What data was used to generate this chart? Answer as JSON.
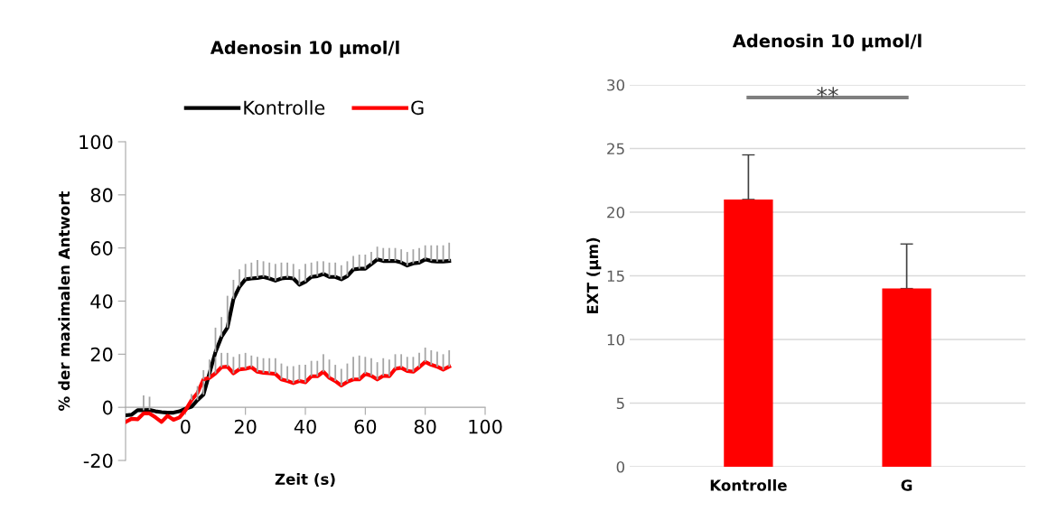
{
  "chart_data": [
    {
      "type": "line",
      "title": "Adenosin 10 µmol/l",
      "xlabel": "Zeit (s)",
      "ylabel": "% der maximalen Antwort",
      "xlim": [
        -20,
        100
      ],
      "xticks": [
        0,
        20,
        40,
        60,
        80,
        100
      ],
      "ylim": [
        -20,
        100
      ],
      "yticks": [
        -20,
        0,
        20,
        40,
        60,
        80,
        100
      ],
      "grid": false,
      "legend": "top",
      "marker": "none",
      "line_style": "solid",
      "x": [
        -20,
        -18,
        -16,
        -14,
        -12,
        -10,
        -8,
        -6,
        -4,
        -2,
        0,
        2,
        4,
        6,
        8,
        10,
        12,
        14,
        16,
        18,
        20,
        22,
        24,
        26,
        28,
        30,
        32,
        34,
        36,
        38,
        40,
        42,
        44,
        46,
        48,
        50,
        52,
        54,
        56,
        58,
        60,
        62,
        64,
        66,
        68,
        70,
        72,
        74,
        76,
        78,
        80,
        82,
        84,
        86,
        88
      ],
      "series": [
        {
          "name": "Kontrolle",
          "color": "#000000",
          "values": [
            -3.0,
            -2.8,
            -1.1,
            -1.1,
            -1.0,
            -1.5,
            -1.8,
            -2.0,
            -2.0,
            -1.5,
            -0.5,
            0.2,
            2.7,
            4.8,
            12.8,
            20.8,
            26.5,
            30.0,
            40.8,
            45.4,
            48.2,
            48.5,
            48.7,
            49.1,
            48.5,
            47.7,
            48.5,
            48.8,
            48.5,
            46.2,
            47.3,
            49.1,
            49.4,
            50.2,
            49.1,
            49.1,
            48.2,
            49.4,
            51.9,
            52.2,
            52.2,
            53.9,
            55.7,
            55.1,
            55.1,
            55.1,
            54.5,
            53.4,
            54.2,
            54.5,
            55.7,
            55.1,
            54.9,
            54.9,
            55.1
          ],
          "errors": [
            null,
            null,
            null,
            [
              -1.1,
              4.5
            ],
            [
              -1.0,
              4
            ],
            null,
            null,
            null,
            null,
            null,
            null,
            null,
            [
              2.7,
              6
            ],
            [
              4.8,
              10
            ],
            [
              12.8,
              18
            ],
            [
              20.8,
              30
            ],
            [
              26.5,
              34
            ],
            [
              30.0,
              42
            ],
            [
              40.8,
              48
            ],
            [
              45.4,
              52
            ],
            [
              48.2,
              54
            ],
            [
              48.5,
              54.5
            ],
            [
              48.7,
              55.5
            ],
            [
              49.1,
              55
            ],
            [
              48.5,
              54.5
            ],
            [
              47.7,
              54
            ],
            [
              48.5,
              54.5
            ],
            [
              48.8,
              54.5
            ],
            [
              48.5,
              54
            ],
            [
              46.2,
              52
            ],
            [
              47.3,
              54
            ],
            [
              49.1,
              54.5
            ],
            [
              49.4,
              55
            ],
            [
              50.2,
              55
            ],
            [
              49.1,
              54.5
            ],
            [
              49.1,
              54.5
            ],
            [
              48.2,
              53.5
            ],
            [
              49.4,
              55
            ],
            [
              51.9,
              57
            ],
            [
              52.2,
              57.5
            ],
            [
              52.2,
              57.5
            ],
            [
              53.9,
              58.5
            ],
            [
              55.7,
              60.5
            ],
            [
              55.1,
              60
            ],
            [
              55.1,
              60
            ],
            [
              55.1,
              60
            ],
            [
              54.5,
              59.5
            ],
            [
              53.4,
              58.5
            ],
            [
              54.2,
              59.5
            ],
            [
              54.5,
              60
            ],
            [
              55.7,
              61
            ],
            [
              55.1,
              61
            ],
            [
              54.9,
              61
            ],
            [
              54.9,
              61
            ],
            [
              55.1,
              62
            ]
          ]
        },
        {
          "name": "G",
          "color": "#ff0000",
          "values": [
            -5.5,
            -4.3,
            -4.5,
            -2.3,
            -2.3,
            -3.8,
            -5.5,
            -3.2,
            -4.7,
            -3.8,
            -1.1,
            2.7,
            5.4,
            10.5,
            11.1,
            12.8,
            15.1,
            15.3,
            12.8,
            14.3,
            14.5,
            15.1,
            13.4,
            13.0,
            12.8,
            12.6,
            10.5,
            9.9,
            9.1,
            9.9,
            9.4,
            11.7,
            11.7,
            13.4,
            11.1,
            9.9,
            8.2,
            9.6,
            10.5,
            10.5,
            12.6,
            11.9,
            10.5,
            11.9,
            11.7,
            14.5,
            14.9,
            13.7,
            13.4,
            15.1,
            17.1,
            16.0,
            15.3,
            14.2,
            15.3
          ],
          "errors": [
            null,
            null,
            null,
            null,
            null,
            null,
            null,
            null,
            null,
            null,
            null,
            [
              2.7,
              5
            ],
            [
              5.4,
              8
            ],
            [
              10.5,
              14
            ],
            [
              11.1,
              15
            ],
            [
              12.8,
              19
            ],
            [
              15.1,
              20.5
            ],
            [
              15.3,
              20.5
            ],
            [
              12.8,
              19
            ],
            [
              14.3,
              20
            ],
            [
              14.5,
              20.5
            ],
            [
              15.1,
              19.5
            ],
            [
              13.4,
              19
            ],
            [
              13.0,
              18.5
            ],
            [
              12.8,
              18.5
            ],
            [
              12.6,
              18.5
            ],
            [
              10.5,
              16.5
            ],
            [
              9.9,
              15.5
            ],
            [
              9.1,
              15.5
            ],
            [
              9.9,
              16
            ],
            [
              9.4,
              16
            ],
            [
              11.7,
              17.5
            ],
            [
              11.7,
              17.5
            ],
            [
              13.4,
              20
            ],
            [
              11.1,
              18
            ],
            [
              9.9,
              16
            ],
            [
              8.2,
              14.5
            ],
            [
              9.6,
              16.5
            ],
            [
              10.5,
              19
            ],
            [
              10.5,
              19.5
            ],
            [
              12.6,
              19
            ],
            [
              11.9,
              18.5
            ],
            [
              10.5,
              17
            ],
            [
              11.9,
              18.5
            ],
            [
              11.7,
              18
            ],
            [
              14.5,
              20
            ],
            [
              14.9,
              20
            ],
            [
              13.7,
              19
            ],
            [
              13.4,
              19
            ],
            [
              15.1,
              20.5
            ],
            [
              17.1,
              22.5
            ],
            [
              16.0,
              21.5
            ],
            [
              15.3,
              21
            ],
            [
              14.2,
              20
            ],
            [
              15.3,
              21.5
            ]
          ]
        }
      ]
    },
    {
      "type": "bar",
      "title": "Adenosin 10 µmol/l",
      "ylabel": "EXT (µm)",
      "categories": [
        "Kontrolle",
        "G"
      ],
      "values": [
        21,
        14
      ],
      "color": "#ff0000",
      "errors": [
        [
          21,
          24.5
        ],
        [
          14,
          17.5
        ]
      ],
      "ylim": [
        0,
        30
      ],
      "yticks": [
        0,
        5,
        10,
        15,
        20,
        25,
        30
      ],
      "grid": "y",
      "legend": false,
      "annotations": [
        "**"
      ]
    }
  ]
}
